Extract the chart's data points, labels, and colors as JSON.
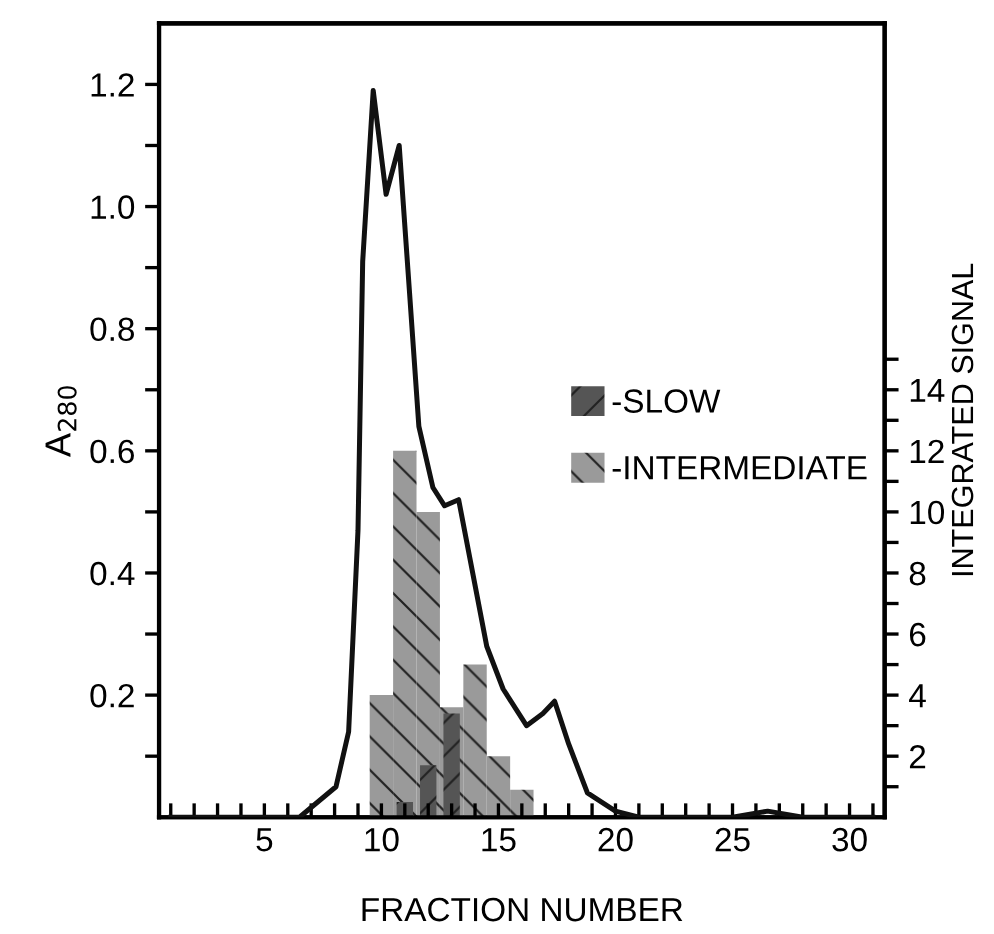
{
  "chart_data": {
    "type": "line",
    "xlabel": "FRACTION NUMBER",
    "ylabel": "A$_{280}$",
    "y2label": "INTEGRATED SIGNAL",
    "xlim": [
      0.5,
      31.5
    ],
    "ylim": [
      0,
      1.3
    ],
    "y2lim": [
      0,
      26
    ],
    "xticks": [
      {
        "value": 1,
        "label": null
      },
      {
        "value": 2,
        "label": null
      },
      {
        "value": 3,
        "label": null
      },
      {
        "value": 4,
        "label": null
      },
      5,
      {
        "value": 6,
        "label": null
      },
      {
        "value": 7,
        "label": null
      },
      {
        "value": 8,
        "label": null
      },
      {
        "value": 9,
        "label": null
      },
      10,
      {
        "value": 11,
        "label": null
      },
      {
        "value": 12,
        "label": null
      },
      {
        "value": 13,
        "label": null
      },
      {
        "value": 14,
        "label": null
      },
      15,
      {
        "value": 16,
        "label": null
      },
      {
        "value": 17,
        "label": null
      },
      {
        "value": 18,
        "label": null
      },
      {
        "value": 19,
        "label": null
      },
      20,
      {
        "value": 21,
        "label": null
      },
      {
        "value": 22,
        "label": null
      },
      {
        "value": 23,
        "label": null
      },
      {
        "value": 24,
        "label": null
      },
      25,
      {
        "value": 26,
        "label": null
      },
      {
        "value": 27,
        "label": null
      },
      {
        "value": 28,
        "label": null
      },
      {
        "value": 29,
        "label": null
      },
      30,
      {
        "value": 31,
        "label": null
      }
    ],
    "yticks": [
      {
        "value": 0.1,
        "label": null
      },
      {
        "value": 0.2,
        "label": "0.2"
      },
      {
        "value": 0.3,
        "label": null
      },
      {
        "value": 0.4,
        "label": "0.4"
      },
      {
        "value": 0.5,
        "label": null
      },
      {
        "value": 0.6,
        "label": "0.6"
      },
      {
        "value": 0.7,
        "label": null
      },
      {
        "value": 0.8,
        "label": "0.8"
      },
      {
        "value": 0.9,
        "label": null
      },
      {
        "value": 1.0,
        "label": "1.0"
      },
      {
        "value": 1.1,
        "label": null
      },
      {
        "value": 1.2,
        "label": "1.2"
      }
    ],
    "y2ticks": [
      {
        "value": 1,
        "label": null
      },
      2,
      {
        "value": 3,
        "label": null
      },
      4,
      {
        "value": 5,
        "label": null
      },
      6,
      {
        "value": 7,
        "label": null
      },
      8,
      {
        "value": 9,
        "label": null
      },
      10,
      {
        "value": 11,
        "label": null
      },
      12,
      {
        "value": 13,
        "label": null
      },
      14,
      {
        "value": 15,
        "label": null
      }
    ],
    "grid": false,
    "legend": "right",
    "series": [
      {
        "color": "#111111",
        "x": [
          1,
          6.5,
          8.06,
          8.6,
          9.0,
          9.2,
          9.65,
          10.2,
          10.76,
          11.2,
          11.6,
          12.2,
          12.7,
          13.3,
          13.8,
          14.5,
          15.2,
          16.2,
          16.9,
          17.4,
          18.0,
          18.8,
          20,
          21,
          25,
          26.5,
          28,
          31
        ],
        "values": [
          0,
          0,
          0.05,
          0.14,
          0.47,
          0.91,
          1.19,
          1.02,
          1.1,
          0.86,
          0.64,
          0.54,
          0.51,
          0.52,
          0.42,
          0.28,
          0.21,
          0.15,
          0.17,
          0.19,
          0.12,
          0.04,
          0.01,
          0,
          0,
          0.01,
          0,
          0
        ]
      },
      {
        "type": "bar",
        "name": "-INTERMEDIATE",
        "axis": "y2",
        "color": "#9a9a9a",
        "x": [
          10,
          11,
          12,
          13,
          14,
          15,
          16
        ],
        "values": [
          4,
          12,
          10,
          3.6,
          5,
          2,
          0.9
        ]
      },
      {
        "type": "bar",
        "name": "-SLOW",
        "axis": "y2",
        "color": "#555555",
        "x": [
          11,
          12,
          13
        ],
        "values": [
          0.5,
          1.7,
          3.4
        ]
      }
    ]
  }
}
